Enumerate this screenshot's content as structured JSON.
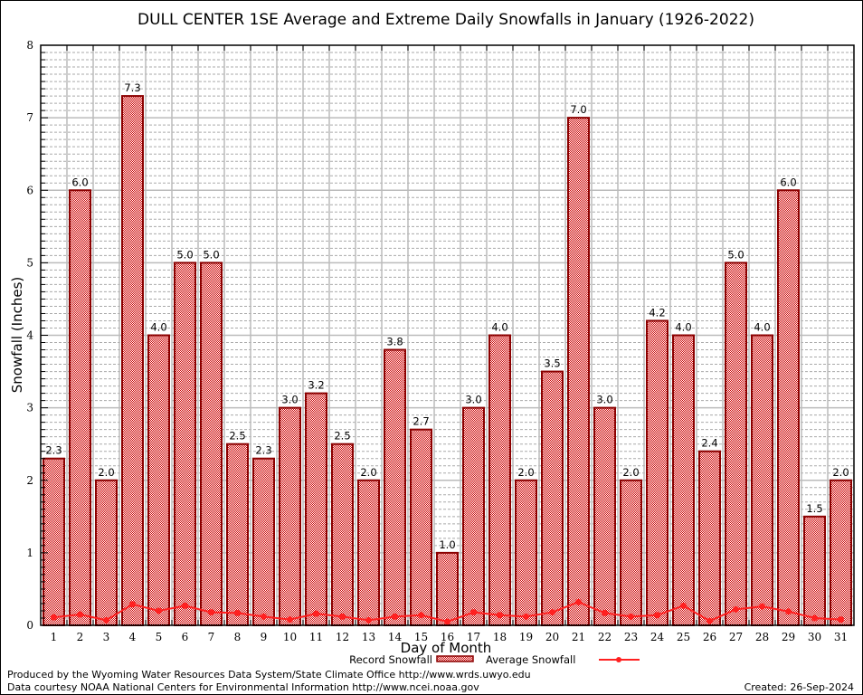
{
  "chart_data": {
    "type": "bar",
    "title": "DULL CENTER 1SE Average and Extreme Daily Snowfalls in January (1926-2022)",
    "xlabel": "Day of Month",
    "ylabel": "Snowfall (Inches)",
    "ylim": [
      0,
      8
    ],
    "yticks": [
      "0",
      "1",
      "2",
      "3",
      "4",
      "5",
      "6",
      "7",
      "8"
    ],
    "grid": true,
    "legend_position": "bottom",
    "categories": [
      "1",
      "2",
      "3",
      "4",
      "5",
      "6",
      "7",
      "8",
      "9",
      "10",
      "11",
      "12",
      "13",
      "14",
      "15",
      "16",
      "17",
      "18",
      "19",
      "20",
      "21",
      "22",
      "23",
      "24",
      "25",
      "26",
      "27",
      "28",
      "29",
      "30",
      "31"
    ],
    "series": [
      {
        "name": "Record Snowfall",
        "type": "bar",
        "color": "#cc0000",
        "values": [
          2.3,
          6.0,
          2.0,
          7.3,
          4.0,
          5.0,
          5.0,
          2.5,
          2.3,
          3.0,
          3.2,
          2.5,
          2.0,
          3.8,
          2.7,
          1.0,
          3.0,
          4.0,
          2.0,
          3.5,
          7.0,
          3.0,
          2.0,
          4.2,
          4.0,
          2.4,
          5.0,
          4.0,
          6.0,
          1.5,
          2.0
        ],
        "labels": [
          "2.3",
          "6.0",
          "2.0",
          "7.3",
          "4.0",
          "5.0",
          "5.0",
          "2.5",
          "2.3",
          "3.0",
          "3.2",
          "2.5",
          "2.0",
          "3.8",
          "2.7",
          "1.0",
          "3.0",
          "4.0",
          "2.0",
          "3.5",
          "7.0",
          "3.0",
          "2.0",
          "4.2",
          "4.0",
          "2.4",
          "5.0",
          "4.0",
          "6.0",
          "1.5",
          "2.0"
        ]
      },
      {
        "name": "Average Snowfall",
        "type": "line",
        "color": "#ff2020",
        "values": [
          0.11,
          0.15,
          0.07,
          0.29,
          0.2,
          0.27,
          0.18,
          0.17,
          0.12,
          0.08,
          0.16,
          0.12,
          0.07,
          0.12,
          0.14,
          0.05,
          0.18,
          0.14,
          0.12,
          0.18,
          0.32,
          0.17,
          0.12,
          0.14,
          0.27,
          0.06,
          0.22,
          0.26,
          0.19,
          0.1,
          0.08
        ]
      }
    ]
  },
  "footer": {
    "line1": "Produced by the Wyoming Water Resources Data System/State Climate Office http://www.wrds.uwyo.edu",
    "line2": "Data courtesy NOAA National Centers for Environmental Information http://www.ncei.noaa.gov",
    "created": "Created:  26-Sep-2024"
  }
}
